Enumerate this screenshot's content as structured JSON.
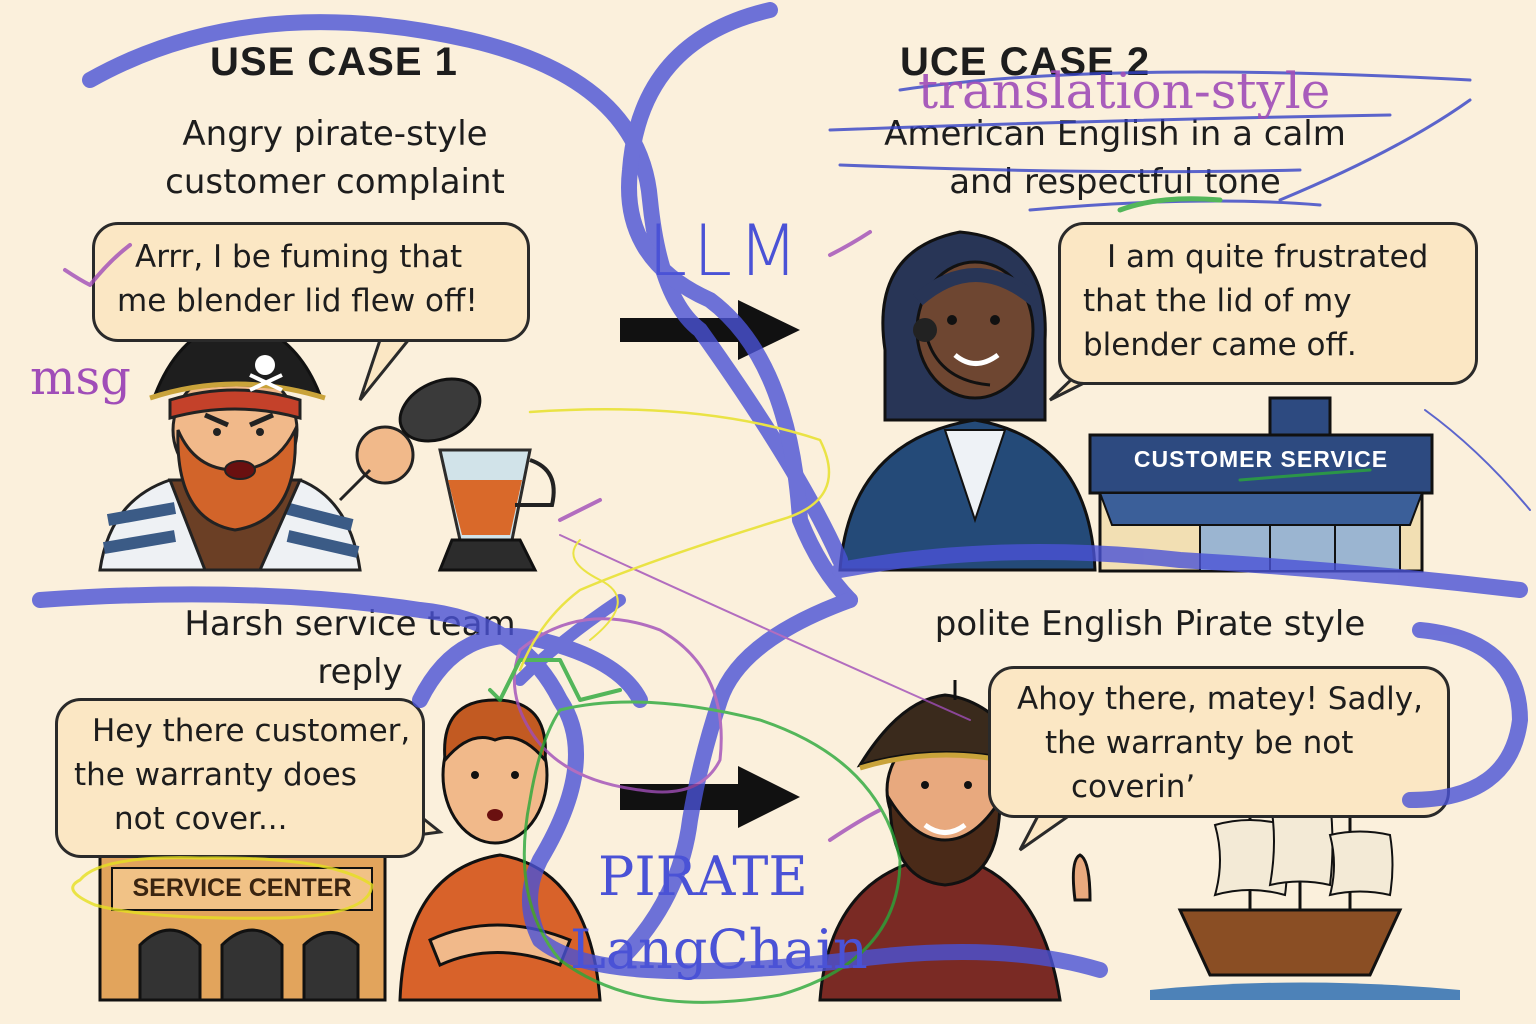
{
  "panels": {
    "top_left": {
      "heading": "USE CASE 1",
      "subtitle_lines": [
        "Angry pirate-style",
        "customer complaint"
      ],
      "bubble_lines": [
        "Arrr, I be fuming that",
        "me blender lid flew off!"
      ]
    },
    "top_right": {
      "heading": "UCE CASE 2",
      "subtitle_lines": [
        "American English in a calm",
        "and respectful tone"
      ],
      "bubble_lines": [
        "I am quite frustrated",
        "that the lid of my",
        "blender came off."
      ],
      "sign": "CUSTOMER SERVICE"
    },
    "bottom_left": {
      "subtitle_lines": [
        "Harsh service team",
        "reply"
      ],
      "bubble_lines": [
        "Hey there customer,",
        "the warranty does",
        "not cover..."
      ],
      "sign": "SERVICE CENTER"
    },
    "bottom_right": {
      "subtitle_lines": [
        "polite English Pirate style"
      ],
      "bubble_lines": [
        "Ahoy there, matey! Sadly,",
        "the warranty be not",
        "coverin’"
      ]
    }
  },
  "annotations": {
    "translation": "translation-style",
    "llm": "LLM",
    "msg": "msg",
    "pirate": "PIRATE",
    "langchain": "LangChain"
  },
  "colors": {
    "background": "#fbf0dc",
    "bubble": "#fbe7c4",
    "ink_blue": "#4a52d6",
    "ink_purple": "#a04db8",
    "ink_green": "#2aa83a",
    "ink_yellow": "#e6e020",
    "arrow": "#111111"
  }
}
